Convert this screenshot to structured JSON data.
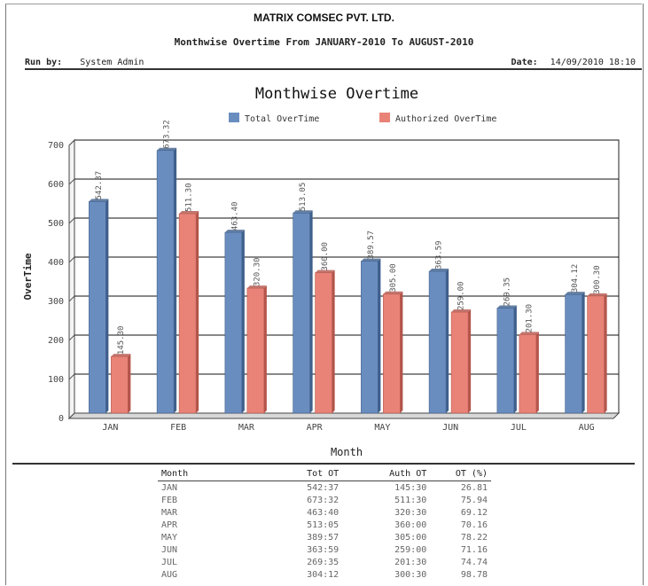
{
  "report": {
    "company": "MATRIX COMSEC PVT. LTD.",
    "title": "Monthwise Overtime From JANUARY-2010 To AUGUST-2010",
    "run_by_label": "Run by:",
    "run_by_value": "System Admin",
    "date_label": "Date:",
    "date_value": "14/09/2010 18:10"
  },
  "colors": {
    "total": "#6a8dbf",
    "total_dark": "#3f5f8c",
    "authorized": "#e98378",
    "authorized_dark": "#b4554b"
  },
  "chart_data": {
    "type": "bar",
    "title": "Monthwise Overtime",
    "xlabel": "Month",
    "ylabel": "OverTime",
    "categories": [
      "JAN",
      "FEB",
      "MAR",
      "APR",
      "MAY",
      "JUN",
      "JUL",
      "AUG"
    ],
    "yticks": [
      0,
      100,
      200,
      300,
      400,
      500,
      600,
      700
    ],
    "ylim": [
      0,
      700
    ],
    "grid": true,
    "legend_position": "top",
    "series": [
      {
        "name": "Total OverTime",
        "values": [
          542.37,
          673.32,
          463.4,
          513.05,
          389.57,
          363.59,
          269.35,
          304.12
        ],
        "labels": [
          "542.37",
          "673.32",
          "463.40",
          "513.05",
          "389.57",
          "363.59",
          "269.35",
          "304.12"
        ]
      },
      {
        "name": "Authorized OverTime",
        "values": [
          145.3,
          511.3,
          320.3,
          360.0,
          305.0,
          259.0,
          201.3,
          300.3
        ],
        "labels": [
          "145.30",
          "511.30",
          "320.30",
          "360.00",
          "305.00",
          "259.00",
          "201.30",
          "300.30"
        ]
      }
    ]
  },
  "table": {
    "headers": [
      "Month",
      "Tot OT",
      "Auth OT",
      "OT (%)"
    ],
    "rows": [
      [
        "JAN",
        "542:37",
        "145:30",
        "26.81"
      ],
      [
        "FEB",
        "673:32",
        "511:30",
        "75.94"
      ],
      [
        "MAR",
        "463:40",
        "320:30",
        "69.12"
      ],
      [
        "APR",
        "513:05",
        "360:00",
        "70.16"
      ],
      [
        "MAY",
        "389:57",
        "305:00",
        "78.22"
      ],
      [
        "JUN",
        "363:59",
        "259:00",
        "71.16"
      ],
      [
        "JUL",
        "269:35",
        "201:30",
        "74.74"
      ],
      [
        "AUG",
        "304:12",
        "300:30",
        "98.78"
      ]
    ]
  }
}
